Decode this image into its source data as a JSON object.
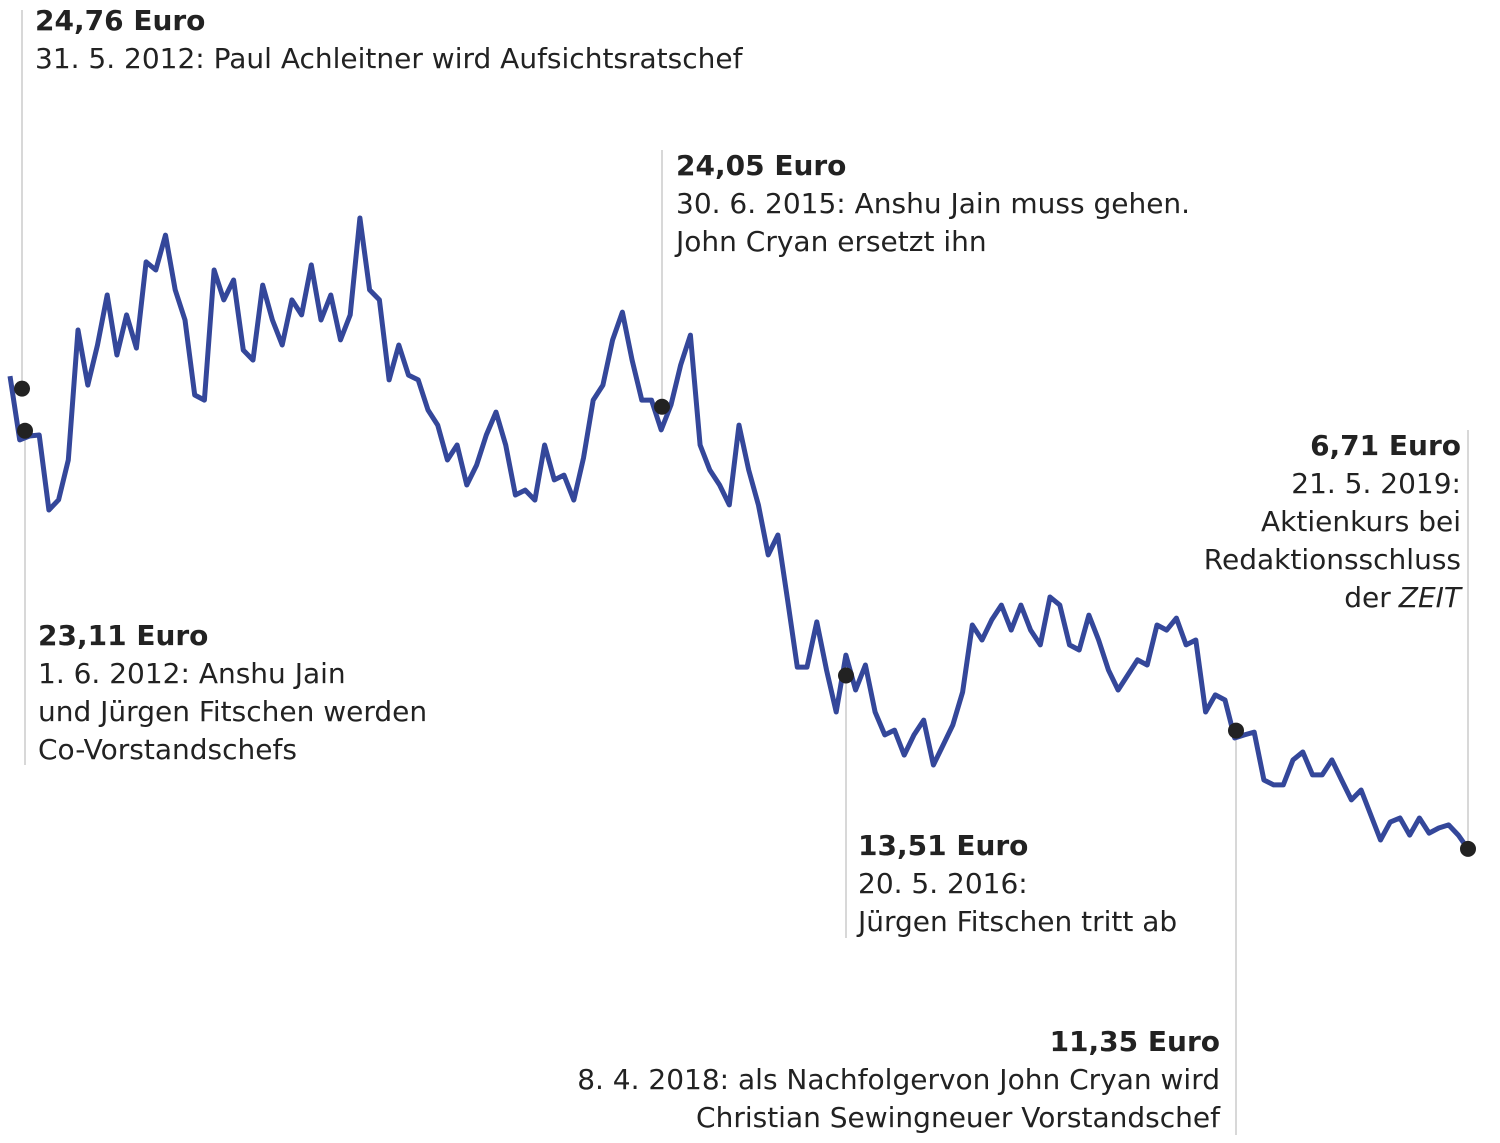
{
  "chart_data": {
    "type": "line",
    "color": "#34479a",
    "ylim": [
      0,
      40
    ],
    "values": [
      25.25,
      22.75,
      22.9,
      22.94,
      20.0,
      20.4,
      21.96,
      27.06,
      24.9,
      26.47,
      28.43,
      26.08,
      27.65,
      26.35,
      29.73,
      29.41,
      30.78,
      28.63,
      27.45,
      24.51,
      24.31,
      29.41,
      28.24,
      29.02,
      26.27,
      25.88,
      28.82,
      27.45,
      26.47,
      28.24,
      27.65,
      29.61,
      27.45,
      28.43,
      26.67,
      27.65,
      31.45,
      28.63,
      28.24,
      25.1,
      26.47,
      25.29,
      25.1,
      23.92,
      23.33,
      21.96,
      22.55,
      20.98,
      21.76,
      22.94,
      23.84,
      22.55,
      20.59,
      20.78,
      20.39,
      22.55,
      21.18,
      21.37,
      20.39,
      22.04,
      24.31,
      24.9,
      26.67,
      27.76,
      25.88,
      24.31,
      24.31,
      23.14,
      24.12,
      25.69,
      26.86,
      22.55,
      21.57,
      20.98,
      20.2,
      23.33,
      21.57,
      20.2,
      18.24,
      19.02,
      16.47,
      13.84,
      13.84,
      15.61,
      13.73,
      12.08,
      14.31,
      12.94,
      13.92,
      12.08,
      11.18,
      11.37,
      10.39,
      11.18,
      11.76,
      10.0,
      10.78,
      11.57,
      12.86,
      15.49,
      14.9,
      15.69,
      16.27,
      15.29,
      16.27,
      15.29,
      14.71,
      16.59,
      16.27,
      14.71,
      14.51,
      15.88,
      14.9,
      13.73,
      12.94,
      13.53,
      14.12,
      13.92,
      15.49,
      15.29,
      15.76,
      14.71,
      14.9,
      12.08,
      12.75,
      12.55,
      11.06,
      11.18,
      11.29,
      9.41,
      9.22,
      9.22,
      10.2,
      10.51,
      9.61,
      9.61,
      10.2,
      9.41,
      8.63,
      9.02,
      8.04,
      7.06,
      7.76,
      7.92,
      7.25,
      7.92,
      7.33,
      7.53,
      7.65,
      7.25,
      6.71
    ],
    "annotations": [
      {
        "value": 24.76,
        "value_label": "24,76 Euro",
        "lines": [
          "31. 5. 2012: Paul Achleitner wird Aufsichtsratschef"
        ]
      },
      {
        "value": 23.11,
        "value_label": "23,11 Euro",
        "lines": [
          "1. 6. 2012: Anshu Jain",
          "und Jürgen Fitschen werden",
          "Co-Vorstandschefs"
        ]
      },
      {
        "value": 24.05,
        "value_label": "24,05 Euro",
        "lines": [
          "30. 6. 2015: Anshu Jain muss gehen.",
          "John Cryan ersetzt ihn"
        ]
      },
      {
        "value": 13.51,
        "value_label": "13,51 Euro",
        "lines": [
          "20. 5. 2016:",
          "Jürgen Fitschen tritt ab"
        ]
      },
      {
        "value": 11.35,
        "value_label": "11,35 Euro",
        "lines": [
          "8. 4. 2018: als Nachfolgervon John Cryan wird",
          "Christian Sewingneuer Vorstandschef"
        ]
      },
      {
        "value": 6.71,
        "value_label": "6,71 Euro",
        "lines": [
          "21. 5. 2019:",
          "Aktienkurs bei",
          "Redaktionsschluss",
          {
            "plain": "der",
            "italic": "ZEIT"
          }
        ]
      }
    ]
  }
}
